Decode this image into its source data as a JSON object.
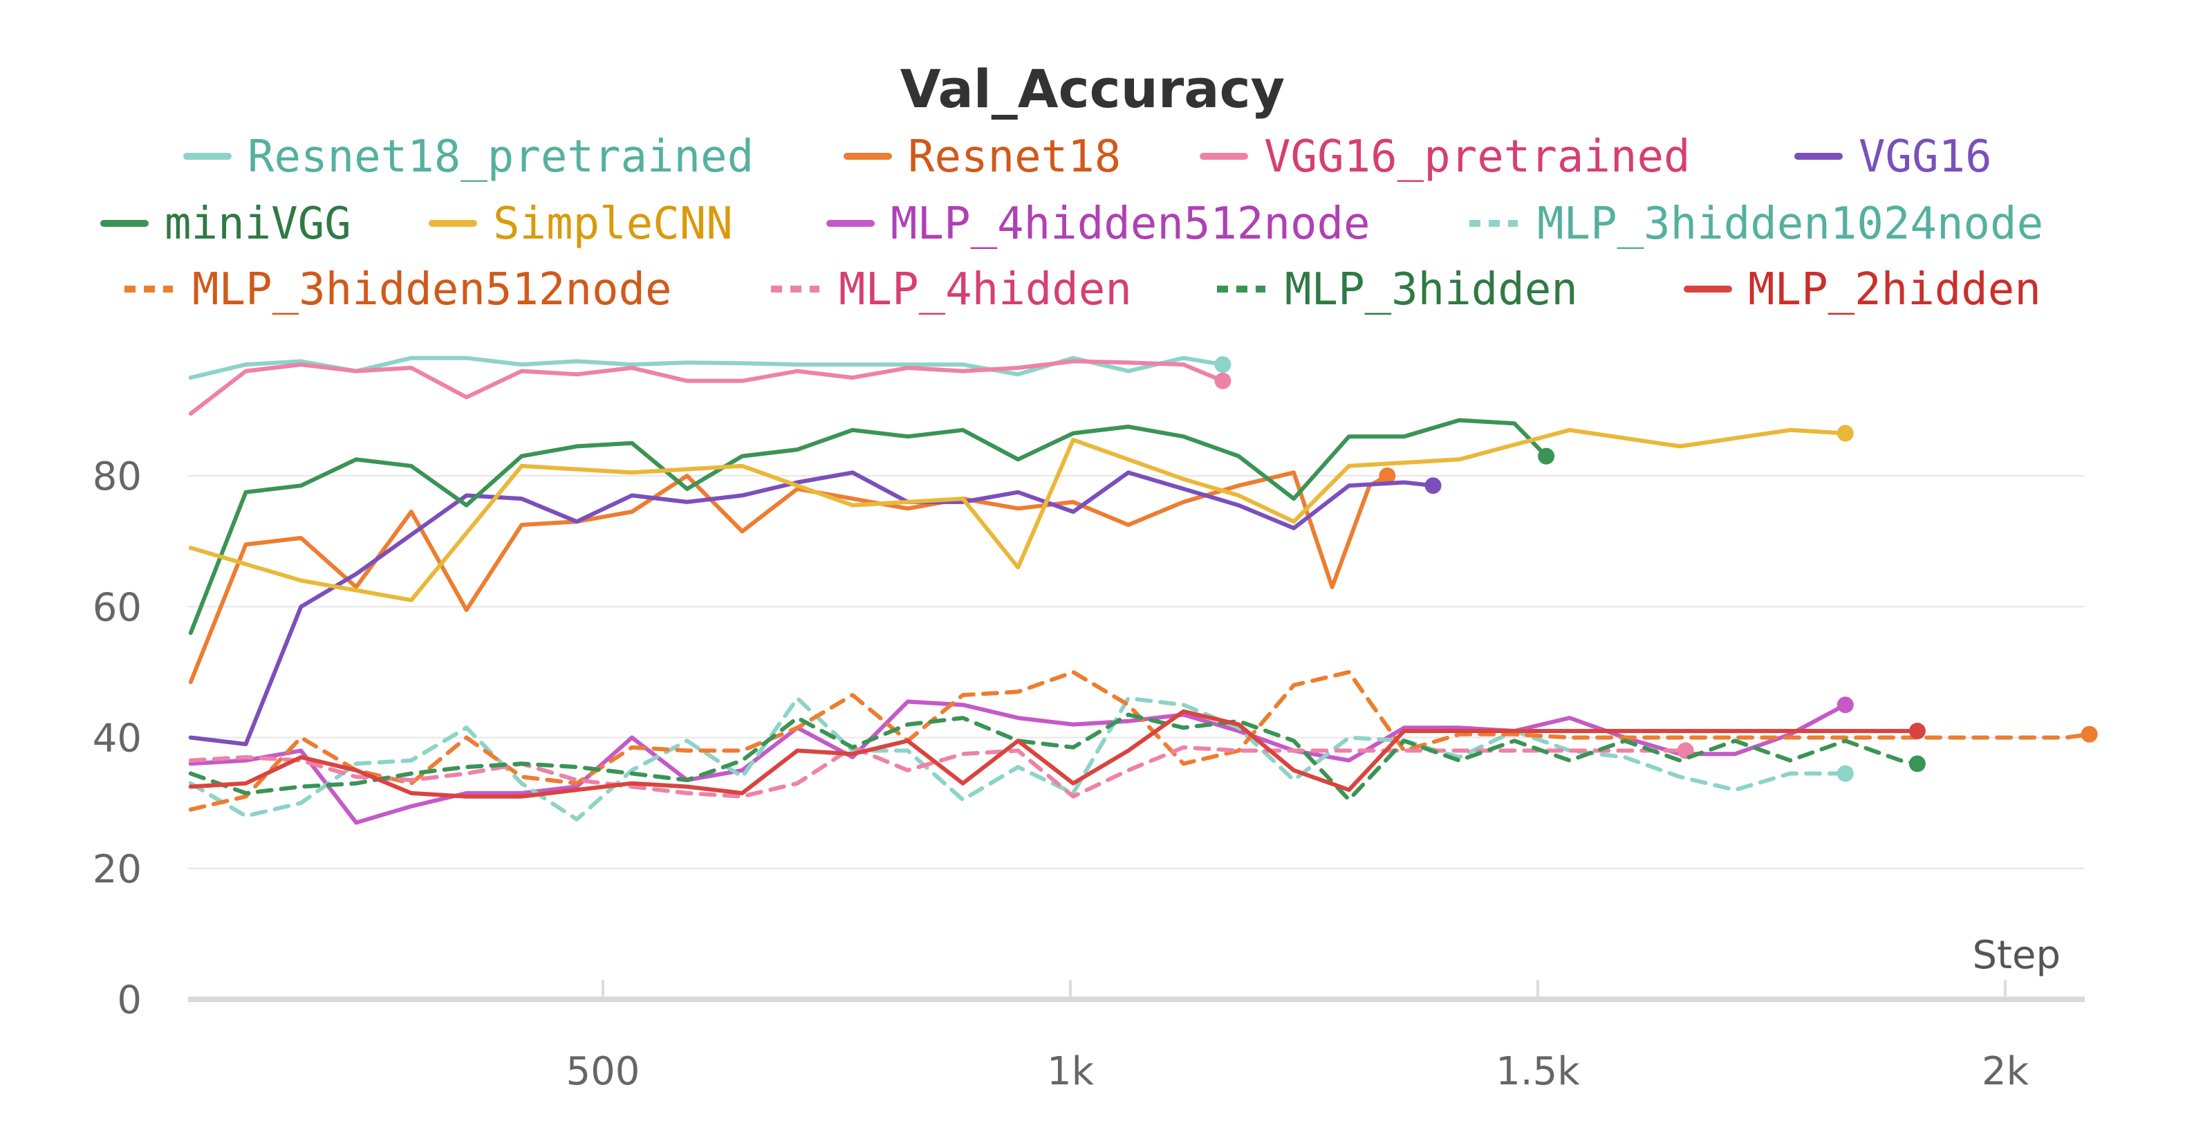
{
  "chart_data": {
    "type": "line",
    "title": "Val_Accuracy",
    "xlabel": "Step",
    "ylabel": "",
    "xlim": [
      0,
      2100
    ],
    "ylim": [
      0,
      100
    ],
    "xticks": [
      {
        "value": 500,
        "label": "500"
      },
      {
        "value": 1000,
        "label": "1k"
      },
      {
        "value": 1500,
        "label": "1.5k"
      },
      {
        "value": 2000,
        "label": "2k"
      }
    ],
    "yticks": [
      {
        "value": 0,
        "label": "0"
      },
      {
        "value": 20,
        "label": "20"
      },
      {
        "value": 40,
        "label": "40"
      },
      {
        "value": 60,
        "label": "60"
      },
      {
        "value": 80,
        "label": "80"
      }
    ],
    "grid": true,
    "legend_position": "top",
    "series": [
      {
        "name": "Resnet18_pretrained",
        "color": "#8dd3c7",
        "text_color": "#55b09f",
        "dashed": false,
        "x": [
          59,
          118,
          177,
          236,
          295,
          354,
          413,
          472,
          531,
          590,
          649,
          708,
          767,
          826,
          885,
          944,
          1003,
          1062,
          1121,
          1163
        ],
        "y": [
          95,
          97,
          97.5,
          96,
          98,
          98,
          97,
          97.5,
          97,
          97.3,
          97.2,
          97,
          97,
          97,
          97,
          95.5,
          98,
          96,
          98,
          97
        ]
      },
      {
        "name": "Resnet18",
        "color": "#ed7d31",
        "text_color": "#d05a1a",
        "dashed": false,
        "x": [
          59,
          118,
          177,
          236,
          295,
          354,
          413,
          472,
          531,
          590,
          649,
          708,
          767,
          826,
          885,
          944,
          1003,
          1062,
          1121,
          1180,
          1239,
          1280,
          1320,
          1339
        ],
        "y": [
          48.5,
          69.5,
          70.5,
          63,
          74.5,
          59.5,
          72.5,
          73,
          74.5,
          80,
          71.5,
          78,
          76.5,
          75,
          76.5,
          75,
          76,
          72.5,
          76,
          78.5,
          80.5,
          63,
          78.5,
          80
        ]
      },
      {
        "name": "VGG16_pretrained",
        "color": "#ee82a6",
        "text_color": "#d63f72",
        "dashed": false,
        "x": [
          59,
          118,
          177,
          236,
          295,
          354,
          413,
          472,
          531,
          590,
          649,
          708,
          767,
          826,
          885,
          944,
          1003,
          1062,
          1121,
          1163
        ],
        "y": [
          89.5,
          96,
          97,
          96,
          96.5,
          92,
          96,
          95.5,
          96.5,
          94.5,
          94.5,
          96,
          95,
          96.5,
          96,
          96.5,
          97.5,
          97.3,
          97,
          94.5
        ]
      },
      {
        "name": "VGG16",
        "color": "#7b4fbb",
        "text_color": "#7b4fbb",
        "dashed": false,
        "x": [
          59,
          118,
          177,
          236,
          295,
          354,
          413,
          472,
          531,
          590,
          649,
          708,
          767,
          826,
          885,
          944,
          1003,
          1062,
          1121,
          1180,
          1239,
          1298,
          1357,
          1388
        ],
        "y": [
          40,
          39,
          60,
          65,
          71,
          77,
          76.5,
          73,
          77,
          76,
          77,
          79,
          80.5,
          76,
          76,
          77.5,
          74.5,
          80.5,
          78,
          75.5,
          72,
          78.5,
          79,
          78.5
        ]
      },
      {
        "name": "miniVGG",
        "color": "#3a9455",
        "text_color": "#2f7a44",
        "dashed": false,
        "x": [
          59,
          118,
          177,
          236,
          295,
          354,
          413,
          472,
          531,
          590,
          649,
          708,
          767,
          826,
          885,
          944,
          1003,
          1062,
          1121,
          1180,
          1239,
          1298,
          1357,
          1416,
          1475,
          1509
        ],
        "y": [
          56,
          77.5,
          78.5,
          82.5,
          81.5,
          75.5,
          83,
          84.5,
          85,
          78,
          83,
          84,
          87,
          86,
          87,
          82.5,
          86.5,
          87.5,
          86,
          83,
          76.5,
          86,
          86,
          88.5,
          88,
          83
        ]
      },
      {
        "name": "SimpleCNN",
        "color": "#eab839",
        "text_color": "#d99a0c",
        "dashed": false,
        "x": [
          59,
          177,
          295,
          413,
          531,
          649,
          767,
          885,
          944,
          1003,
          1121,
          1180,
          1239,
          1298,
          1416,
          1534,
          1652,
          1770,
          1829
        ],
        "y": [
          69,
          64,
          61,
          81.5,
          80.5,
          81.5,
          75.5,
          76.5,
          66,
          85.5,
          79.5,
          77,
          73,
          81.5,
          82.5,
          87,
          84.5,
          87,
          86.5
        ]
      },
      {
        "name": "MLP_4hidden512node",
        "color": "#c45ac7",
        "text_color": "#b040b5",
        "dashed": false,
        "x": [
          59,
          118,
          177,
          236,
          295,
          354,
          413,
          472,
          531,
          590,
          649,
          708,
          767,
          826,
          885,
          944,
          1003,
          1062,
          1121,
          1180,
          1239,
          1298,
          1357,
          1416,
          1475,
          1534,
          1593,
          1652,
          1711,
          1770,
          1829
        ],
        "y": [
          36,
          36.5,
          38,
          27,
          29.5,
          31.5,
          31.5,
          32.5,
          40,
          33.5,
          35,
          41.5,
          37,
          45.5,
          45,
          43,
          42,
          42.5,
          43.5,
          41,
          38,
          36.5,
          41.5,
          41.5,
          41,
          43,
          40,
          37.5,
          37.5,
          40.5,
          45
        ]
      },
      {
        "name": "MLP_3hidden1024node",
        "color": "#8dd3c7",
        "text_color": "#55b09f",
        "dashed": true,
        "x": [
          59,
          118,
          177,
          236,
          295,
          354,
          413,
          472,
          531,
          590,
          649,
          708,
          767,
          826,
          885,
          944,
          1003,
          1062,
          1121,
          1180,
          1239,
          1298,
          1357,
          1416,
          1475,
          1534,
          1593,
          1652,
          1711,
          1770,
          1829
        ],
        "y": [
          33,
          28,
          30,
          36,
          36.5,
          41.5,
          33,
          27.5,
          35,
          39.5,
          34,
          46,
          38,
          38,
          30.5,
          35.5,
          31.5,
          46,
          45,
          41.5,
          33.5,
          40,
          39.5,
          37,
          41,
          38,
          37,
          34,
          32,
          34.5,
          34.5
        ]
      },
      {
        "name": "MLP_3hidden512node",
        "color": "#ed7d31",
        "text_color": "#d05a1a",
        "dashed": true,
        "x": [
          59,
          118,
          177,
          236,
          295,
          354,
          413,
          472,
          531,
          590,
          649,
          708,
          767,
          826,
          885,
          944,
          1003,
          1062,
          1121,
          1180,
          1239,
          1298,
          1357,
          1416,
          1475,
          1534,
          1593,
          1652,
          1711,
          1770,
          1829,
          1888,
          1947,
          2006,
          2065,
          2090
        ],
        "y": [
          29,
          31,
          40,
          35,
          33,
          40,
          34,
          33,
          38.5,
          38,
          38,
          41.5,
          46.5,
          39.5,
          46.5,
          47,
          50,
          45,
          36,
          38,
          48,
          50,
          38,
          40.5,
          40.5,
          40,
          40,
          40,
          40,
          40,
          40,
          40,
          40,
          40,
          40,
          40.5
        ]
      },
      {
        "name": "MLP_4hidden",
        "color": "#ee82a6",
        "text_color": "#d63f72",
        "dashed": true,
        "x": [
          59,
          118,
          177,
          236,
          295,
          354,
          413,
          472,
          531,
          590,
          649,
          708,
          767,
          826,
          885,
          944,
          1003,
          1062,
          1121,
          1180,
          1239,
          1298,
          1357,
          1416,
          1475,
          1534,
          1593,
          1652,
          1658
        ],
        "y": [
          36.5,
          37,
          36.5,
          34,
          33.5,
          34.5,
          36,
          33.5,
          32.5,
          31.5,
          31,
          33,
          38.5,
          35,
          37.5,
          38,
          31,
          35,
          38.5,
          38,
          38,
          38,
          38,
          38,
          38,
          38,
          38,
          38,
          38
        ]
      },
      {
        "name": "MLP_3hidden",
        "color": "#3a9455",
        "text_color": "#2f7a44",
        "dashed": true,
        "x": [
          59,
          118,
          177,
          236,
          295,
          354,
          413,
          472,
          531,
          590,
          649,
          708,
          767,
          826,
          885,
          944,
          1003,
          1062,
          1121,
          1180,
          1239,
          1298,
          1357,
          1416,
          1475,
          1534,
          1593,
          1652,
          1711,
          1770,
          1829,
          1888,
          1906
        ],
        "y": [
          34.5,
          31.5,
          32.5,
          33,
          34.5,
          35.5,
          36,
          35.5,
          34.5,
          33.5,
          36.5,
          43,
          38.5,
          42,
          43,
          39.5,
          38.5,
          43.5,
          41.5,
          42.5,
          39.5,
          30.5,
          39.5,
          36.5,
          39.5,
          36.5,
          39.5,
          36.5,
          39.5,
          36.5,
          39.5,
          36.5,
          36
        ]
      },
      {
        "name": "MLP_2hidden",
        "color": "#d9443f",
        "text_color": "#c9302c",
        "dashed": false,
        "x": [
          59,
          118,
          177,
          236,
          295,
          354,
          413,
          472,
          531,
          590,
          649,
          708,
          767,
          826,
          885,
          944,
          1003,
          1062,
          1121,
          1180,
          1239,
          1298,
          1357,
          1416,
          1475,
          1534,
          1593,
          1652,
          1711,
          1770,
          1829,
          1888,
          1906
        ],
        "y": [
          32.5,
          33,
          37,
          35,
          31.5,
          31,
          31,
          32,
          33,
          32.5,
          31.5,
          38,
          37.5,
          39.5,
          33,
          39.5,
          33,
          38,
          44,
          42,
          35,
          32,
          41,
          41,
          41,
          41,
          41,
          41,
          41,
          41,
          41,
          41,
          41
        ]
      }
    ]
  }
}
